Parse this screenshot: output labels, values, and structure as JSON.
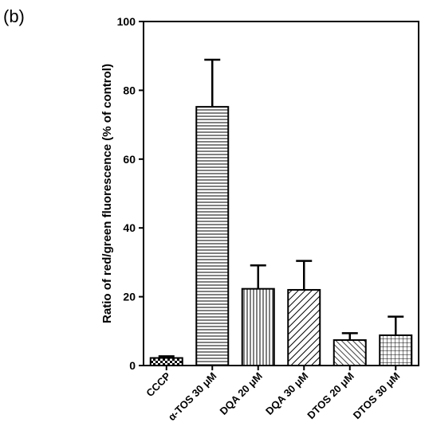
{
  "panel_label": "(b)",
  "chart_data": {
    "type": "bar",
    "title": "",
    "xlabel": "",
    "ylabel": "Ratio of red/green fluorescence (% of control)",
    "ylim": [
      0,
      100
    ],
    "yticks": [
      0,
      20,
      40,
      60,
      80,
      100
    ],
    "categories": [
      "CCCP",
      "α-TOS 30 μM",
      "DQA 20 μM",
      "DQA 30 μM",
      "DTOS 20 μM",
      "DTOS 30 μM"
    ],
    "values": [
      2.2,
      75.2,
      22.3,
      22.0,
      7.4,
      8.8
    ],
    "errors": [
      0.5,
      13.7,
      6.8,
      8.4,
      2.0,
      5.4
    ],
    "patterns": [
      "checker",
      "horizontal-lines",
      "vertical-lines",
      "diagonal-lines",
      "back-diagonal-lines",
      "grid"
    ],
    "grid": false,
    "legend": "none",
    "bar_fill": "#ffffff",
    "stroke_color": "#000000"
  }
}
